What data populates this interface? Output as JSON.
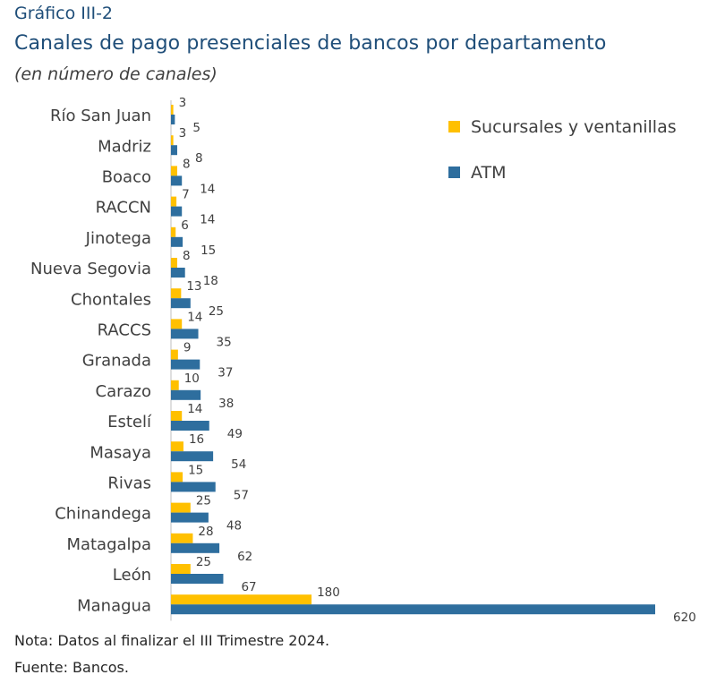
{
  "header": {
    "eyebrow": "Gráfico III-2",
    "title": "Canales de pago presenciales de bancos por departamento",
    "subtitle": "(en número de canales)"
  },
  "footer": {
    "note": "Nota: Datos al finalizar el III Trimestre 2024.",
    "source": "Fuente: Bancos."
  },
  "colors": {
    "sucursales": "#FFC000",
    "atm": "#2E6E9E",
    "axis": "#BFBFBF"
  },
  "chart_data": {
    "type": "bar",
    "orientation": "horizontal",
    "categories": [
      "Río San Juan",
      "Madriz",
      "Boaco",
      "RACCN",
      "Jinotega",
      "Nueva Segovia",
      "Chontales",
      "RACCS",
      "Granada",
      "Carazo",
      "Estelí",
      "Masaya",
      "Rivas",
      "Chinandega",
      "Matagalpa",
      "León",
      "Managua"
    ],
    "series": [
      {
        "name": "Sucursales y ventanillas",
        "values": [
          3,
          3,
          8,
          7,
          6,
          8,
          13,
          14,
          9,
          10,
          14,
          16,
          15,
          25,
          28,
          25,
          180
        ]
      },
      {
        "name": "ATM",
        "values": [
          5,
          8,
          14,
          14,
          15,
          18,
          25,
          35,
          37,
          38,
          49,
          54,
          57,
          48,
          62,
          67,
          620
        ]
      }
    ],
    "legend_position": "top-right",
    "grid": false,
    "xlim": [
      0,
      620
    ]
  }
}
